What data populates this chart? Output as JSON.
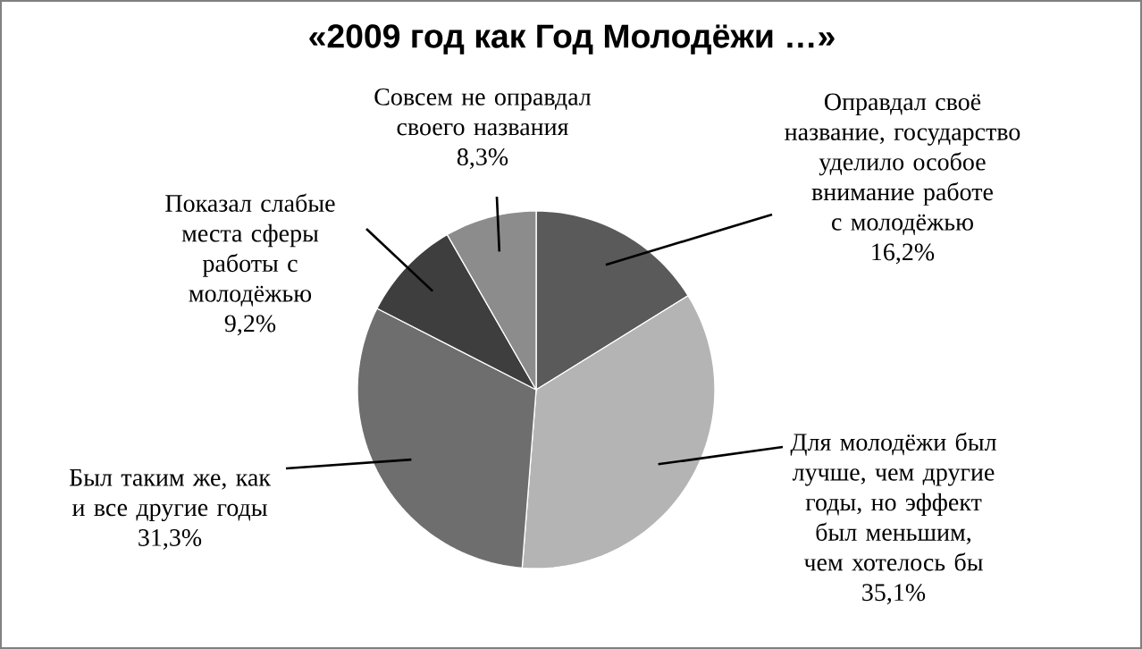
{
  "chart_data": {
    "type": "pie",
    "title": "«2009 год как  Год Молодёжи …»",
    "categories": [
      "Оправдал своё название, государство уделило особое внимание работе с молодёжью",
      "Для молодёжи был лучше, чем другие годы, но эффект был меньшим, чем хотелось бы",
      "Был таким же, как и все другие годы",
      "Показал слабые места сферы работы с молодёжью",
      "Совсем не оправдал своего названия"
    ],
    "values": [
      16.2,
      35.1,
      31.3,
      9.2,
      8.3
    ],
    "value_labels": [
      "16,2%",
      "35,1%",
      "31,3%",
      "9,2%",
      "8,3%"
    ],
    "colors": [
      "#5a5a5a",
      "#b4b4b4",
      "#6e6e6e",
      "#3e3e3e",
      "#8c8c8c"
    ]
  }
}
